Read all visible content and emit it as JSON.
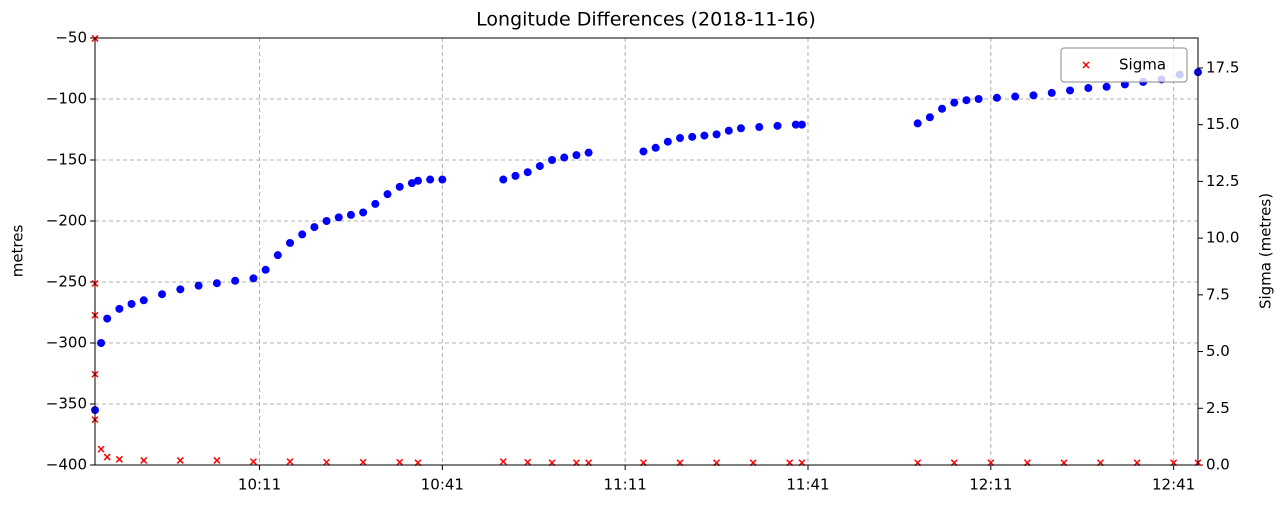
{
  "chart_data": {
    "type": "scatter",
    "title": "Longitude Differences (2018-11-16)",
    "y_label": "metres",
    "y2_label": "Sigma (metres)",
    "xlim": [
      "09:44",
      "12:45"
    ],
    "xticks": [
      "10:11",
      "10:41",
      "11:11",
      "11:41",
      "12:11",
      "12:41"
    ],
    "ylim": [
      -400,
      -50
    ],
    "yticks": [
      {
        "value": -400,
        "label": "−400"
      },
      {
        "value": -350,
        "label": "−350"
      },
      {
        "value": -300,
        "label": "−300"
      },
      {
        "value": -250,
        "label": "−250"
      },
      {
        "value": -200,
        "label": "−200"
      },
      {
        "value": -150,
        "label": "−150"
      },
      {
        "value": -100,
        "label": "−100"
      },
      {
        "value": -50,
        "label": "−50"
      }
    ],
    "y2lim": [
      0,
      18.82
    ],
    "y2ticks": [
      {
        "value": 0,
        "label": "0.0"
      },
      {
        "value": 2.5,
        "label": "2.5"
      },
      {
        "value": 5,
        "label": "5.0"
      },
      {
        "value": 7.5,
        "label": "7.5"
      },
      {
        "value": 10,
        "label": "10.0"
      },
      {
        "value": 12.5,
        "label": "12.5"
      },
      {
        "value": 15,
        "label": "15.0"
      },
      {
        "value": 17.5,
        "label": "17.5"
      }
    ],
    "grid": true,
    "legend": "upper right",
    "series": [
      {
        "color": "#0000ff",
        "marker": "o",
        "x": [
          "09:44",
          "09:45",
          "09:46",
          "09:48",
          "09:50",
          "09:52",
          "09:55",
          "09:58",
          "10:01",
          "10:04",
          "10:07",
          "10:10",
          "10:12",
          "10:14",
          "10:16",
          "10:18",
          "10:20",
          "10:22",
          "10:24",
          "10:26",
          "10:28",
          "10:30",
          "10:32",
          "10:34",
          "10:36",
          "10:37",
          "10:39",
          "10:41",
          "10:51",
          "10:53",
          "10:55",
          "10:57",
          "10:59",
          "11:01",
          "11:03",
          "11:05",
          "11:14",
          "11:16",
          "11:18",
          "11:20",
          "11:22",
          "11:24",
          "11:26",
          "11:28",
          "11:30",
          "11:33",
          "11:36",
          "11:39",
          "11:40",
          "11:59",
          "12:01",
          "12:03",
          "12:05",
          "12:07",
          "12:09",
          "12:12",
          "12:15",
          "12:18",
          "12:21",
          "12:24",
          "12:27",
          "12:30",
          "12:33",
          "12:36",
          "12:39",
          "12:42",
          "12:45"
        ],
        "values": [
          -355,
          -300,
          -280,
          -272,
          -268,
          -265,
          -260,
          -256,
          -253,
          -251,
          -249,
          -247,
          -240,
          -228,
          -218,
          -211,
          -205,
          -200,
          -197,
          -195,
          -193,
          -186,
          -178,
          -172,
          -169,
          -167,
          -166,
          -166,
          -166,
          -163,
          -160,
          -155,
          -150,
          -148,
          -146,
          -144,
          -143,
          -140,
          -135,
          -132,
          -131,
          -130,
          -129,
          -126,
          -124,
          -123,
          -122,
          -121,
          -121,
          -120,
          -115,
          -108,
          -103,
          -101,
          -100,
          -99,
          -98,
          -97,
          -95,
          -93,
          -91,
          -90,
          -88,
          -86,
          -84,
          -80,
          -78
        ]
      },
      {
        "name": "Sigma",
        "color": "#ff0000",
        "marker": "x",
        "axis": "y2",
        "x": [
          "09:44",
          "09:44",
          "09:44",
          "09:44",
          "09:44",
          "09:45",
          "09:46",
          "09:48",
          "09:52",
          "09:58",
          "10:04",
          "10:10",
          "10:16",
          "10:22",
          "10:28",
          "10:34",
          "10:37",
          "10:51",
          "10:55",
          "10:59",
          "11:03",
          "11:05",
          "11:14",
          "11:20",
          "11:26",
          "11:32",
          "11:38",
          "11:40",
          "11:59",
          "12:05",
          "12:11",
          "12:17",
          "12:23",
          "12:29",
          "12:35",
          "12:41",
          "12:45"
        ],
        "values": [
          18.8,
          8.0,
          6.6,
          4.0,
          2.0,
          0.7,
          0.35,
          0.25,
          0.2,
          0.2,
          0.2,
          0.15,
          0.15,
          0.12,
          0.12,
          0.12,
          0.1,
          0.15,
          0.12,
          0.1,
          0.1,
          0.1,
          0.1,
          0.1,
          0.1,
          0.1,
          0.1,
          0.1,
          0.1,
          0.1,
          0.1,
          0.1,
          0.1,
          0.1,
          0.1,
          0.1,
          0.1
        ]
      }
    ]
  }
}
